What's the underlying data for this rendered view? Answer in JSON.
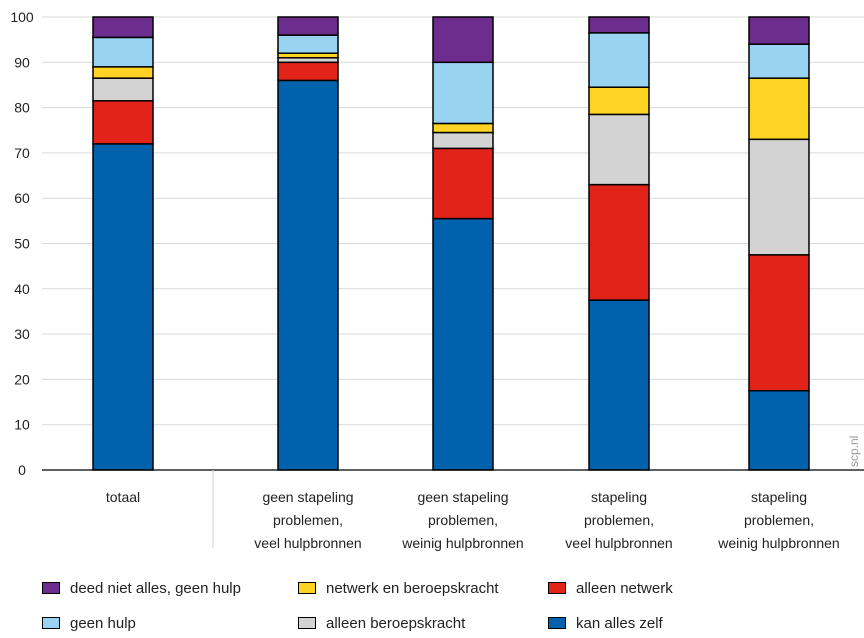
{
  "chart_data": {
    "type": "bar",
    "stacked": true,
    "categories": [
      [
        "totaal"
      ],
      [
        "geen stapeling",
        "problemen,",
        "veel hulpbronnen"
      ],
      [
        "geen stapeling",
        "problemen,",
        "weinig hulpbronnen"
      ],
      [
        "stapeling",
        "problemen,",
        "veel hulpbronnen"
      ],
      [
        "stapeling",
        "problemen,",
        "weinig hulpbronnen"
      ]
    ],
    "series": [
      {
        "name": "kan alles zelf",
        "color": "#0062ad",
        "values": [
          72,
          86,
          55.5,
          37.5,
          17.5
        ]
      },
      {
        "name": "alleen netwerk",
        "color": "#e2231a",
        "values": [
          9.5,
          4,
          15.5,
          25.5,
          30
        ]
      },
      {
        "name": "alleen beroepskracht",
        "color": "#d3d3d3",
        "values": [
          5,
          1,
          3.5,
          15.5,
          25.5
        ]
      },
      {
        "name": "netwerk en beroepskracht",
        "color": "#ffd324",
        "values": [
          2.5,
          1,
          2,
          6,
          13.5
        ]
      },
      {
        "name": "geen hulp",
        "color": "#99d3f2",
        "values": [
          6.5,
          4,
          13.5,
          12,
          7.5
        ]
      },
      {
        "name": "deed niet alles, geen hulp",
        "color": "#6d2d8e",
        "values": [
          4.5,
          4,
          10,
          3.5,
          6
        ]
      }
    ],
    "yticks": [
      "0",
      "10",
      "20",
      "30",
      "40",
      "50",
      "60",
      "70",
      "80",
      "90",
      "100"
    ],
    "ylim": [
      0,
      100
    ],
    "grid": true,
    "legend_position": "bottom"
  },
  "legend": [
    {
      "label": "deed niet alles, geen hulp",
      "color": "#6d2d8e"
    },
    {
      "label": "netwerk en beroepskracht",
      "color": "#ffd324"
    },
    {
      "label": "alleen netwerk",
      "color": "#e2231a"
    },
    {
      "label": "geen hulp",
      "color": "#99d3f2"
    },
    {
      "label": "alleen beroepskracht",
      "color": "#d3d3d3"
    },
    {
      "label": "kan alles zelf",
      "color": "#0062ad"
    }
  ],
  "watermark": "scp.nl"
}
